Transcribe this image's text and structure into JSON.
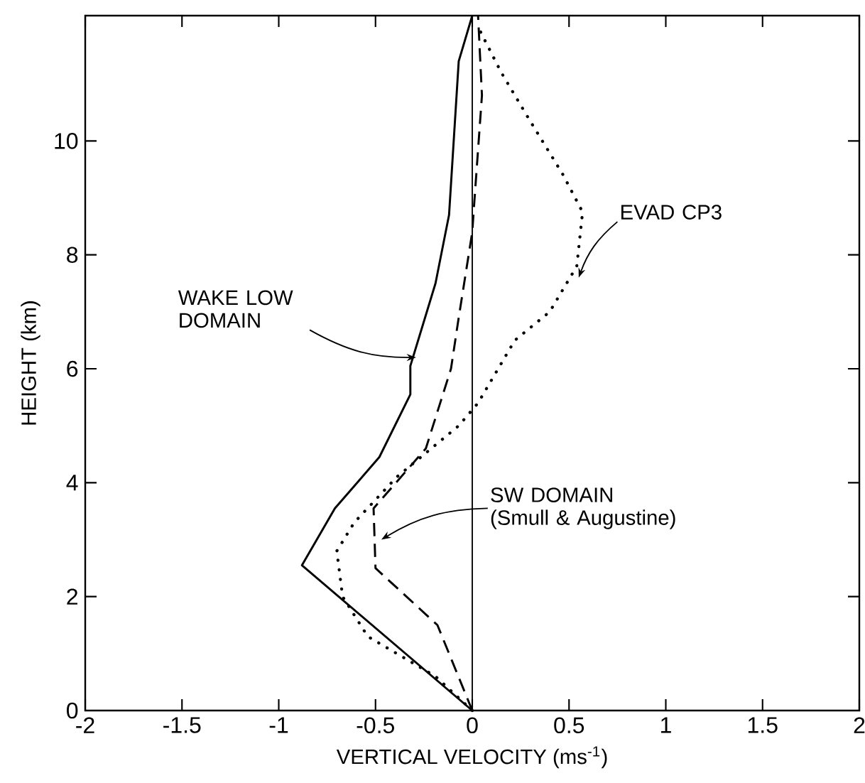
{
  "chart_data": {
    "type": "line",
    "xlabel": "VERTICAL VELOCITY (ms$^{-1}$)",
    "ylabel": "HEIGHT (km)",
    "xlim": [
      -2,
      2
    ],
    "xticks": [
      -2,
      -1.5,
      -1,
      -0.5,
      0,
      0.5,
      1,
      1.5,
      2
    ],
    "ylim": [
      0,
      12.2
    ],
    "yticks": [
      0,
      2,
      4,
      6,
      8,
      10
    ],
    "ref_lines": [
      {
        "axis": "x",
        "value": 0,
        "color": "#000000",
        "line_style": "solid"
      }
    ],
    "annotations": [
      {
        "text": "WAKE LOW DOMAIN",
        "x": -0.29,
        "y": 6.2
      },
      {
        "text": "SW DOMAIN (Smull & Augustine)",
        "x": -0.47,
        "y": 3.0
      },
      {
        "text": "EVAD CP3",
        "x": 0.55,
        "y": 7.6
      }
    ],
    "series": [
      {
        "color": "#000000",
        "line_style": "solid",
        "x": [
          0,
          -0.88,
          -0.71,
          -0.48,
          -0.32,
          -0.32,
          -0.19,
          -0.12,
          -0.07,
          0
        ],
        "values": [
          0,
          2.55,
          3.55,
          4.45,
          5.55,
          6.05,
          7.5,
          8.7,
          11.4,
          12.2
        ]
      },
      {
        "color": "#000000",
        "line_style": "dashed",
        "x": [
          0,
          -0.18,
          -0.5,
          -0.51,
          -0.24,
          -0.11,
          -0.07,
          0,
          0.01,
          0.05,
          0.03
        ],
        "values": [
          0,
          1.5,
          2.5,
          3.55,
          4.6,
          6.0,
          6.9,
          8.4,
          8.9,
          10.8,
          12.2
        ]
      },
      {
        "color": "#000000",
        "line_style": "dotted",
        "x": [
          0,
          -0.19,
          -0.54,
          -0.67,
          -0.7,
          -0.61,
          -0.39,
          -0.07,
          0.03,
          0.22,
          0.4,
          0.54,
          0.57,
          0.47,
          0.29,
          0.15,
          0.03
        ],
        "values": [
          0,
          0.6,
          1.3,
          2.0,
          2.8,
          3.3,
          4.1,
          5.0,
          5.4,
          6.5,
          7.0,
          7.8,
          8.75,
          9.4,
          10.4,
          11.2,
          12.0
        ]
      }
    ]
  }
}
